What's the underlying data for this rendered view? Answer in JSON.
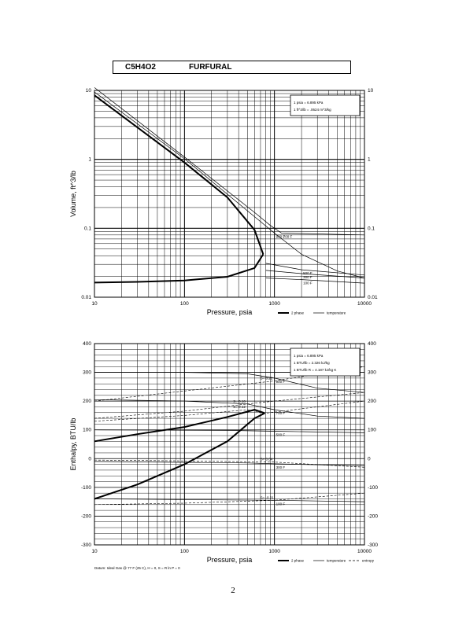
{
  "header": {
    "formula": "C5H4O2",
    "name": "FURFURAL"
  },
  "page_number": "2",
  "chart_data": [
    {
      "type": "line",
      "log_x": true,
      "log_y": true,
      "xlim": [
        10,
        10000
      ],
      "ylim": [
        0.01,
        10
      ],
      "xlabel": "Pressure,  psia",
      "ylabel": "Volume, ft^3/lb",
      "x_ticks": [
        "10",
        "100",
        "1000",
        "10000"
      ],
      "y_ticks": [
        "0.01",
        "0.1",
        "1",
        "10"
      ],
      "conversion_box": [
        "1 psia = 6.895 kPa",
        "1 ft^3/lb = .0624 m^3/kg"
      ],
      "legend_items": [
        "2 phase",
        "temperature"
      ],
      "dome": {
        "liquid": [
          [
            10,
            0.0163
          ],
          [
            30,
            0.0167
          ],
          [
            100,
            0.0175
          ],
          [
            300,
            0.0198
          ],
          [
            600,
            0.0265
          ],
          [
            750,
            0.042
          ]
        ],
        "vapor": [
          [
            10,
            8.5
          ],
          [
            30,
            2.9
          ],
          [
            100,
            0.9
          ],
          [
            300,
            0.28
          ],
          [
            600,
            0.095
          ],
          [
            750,
            0.042
          ]
        ]
      },
      "isotherms": [
        {
          "label": "900 F",
          "points": [
            [
              10,
              9.5
            ],
            [
              100,
              1.02
            ],
            [
              500,
              0.18
            ],
            [
              1000,
              0.085
            ],
            [
              2000,
              0.042
            ],
            [
              5000,
              0.024
            ],
            [
              10000,
              0.019
            ]
          ]
        },
        {
          "label": "700 F",
          "points": [
            [
              10,
              11
            ],
            [
              100,
              1.08
            ],
            [
              600,
              0.17
            ],
            [
              900,
              0.11
            ],
            [
              1200,
              0.085
            ],
            [
              10000,
              0.08
            ]
          ]
        },
        {
          "label": "500 F",
          "points": [
            [
              800,
              0.031
            ],
            [
              2000,
              0.025
            ],
            [
              10000,
              0.021
            ]
          ]
        },
        {
          "label": "300 F",
          "points": [
            [
              800,
              0.0245
            ],
            [
              2000,
              0.022
            ],
            [
              10000,
              0.019
            ]
          ]
        },
        {
          "label": "100 F",
          "points": [
            [
              800,
              0.019
            ],
            [
              2000,
              0.018
            ],
            [
              10000,
              0.016
            ]
          ]
        }
      ]
    },
    {
      "type": "line",
      "log_x": true,
      "xlim": [
        10,
        10000
      ],
      "ylim": [
        -300,
        400
      ],
      "xlabel": "Pressure,  psia",
      "ylabel": "Enthalpy, BTU/lb",
      "x_ticks": [
        "10",
        "100",
        "1000",
        "10000"
      ],
      "y_ticks": [
        "400",
        "300",
        "200",
        "100",
        "0",
        "-100",
        "-200",
        "-300"
      ],
      "conversion_box": [
        "1 psia = 6.895 kPa",
        "1 BTU/lb = 2.326 kJ/kg",
        "1 BTU/lb R = 4.187 kJ/kg K"
      ],
      "legend_items": [
        "2 phase",
        "temperature",
        "entropy"
      ],
      "footnote": "Datum: Ideal Gas @ 77 F (25 C),  H = 0,  S = R ln P = 0",
      "dome": {
        "liquid": [
          [
            10,
            -140
          ],
          [
            30,
            -90
          ],
          [
            100,
            -20
          ],
          [
            300,
            60
          ],
          [
            600,
            140
          ],
          [
            780,
            158
          ]
        ],
        "vapor": [
          [
            10,
            60
          ],
          [
            30,
            85
          ],
          [
            100,
            110
          ],
          [
            300,
            145
          ],
          [
            600,
            170
          ],
          [
            780,
            158
          ]
        ]
      },
      "isotherms": [
        {
          "label": "900 F",
          "points": [
            [
              10,
              300
            ],
            [
              100,
              300
            ],
            [
              500,
              295
            ],
            [
              1000,
              280
            ],
            [
              3000,
              245
            ],
            [
              10000,
              230
            ]
          ]
        },
        {
          "label": "700 F",
          "points": [
            [
              10,
              205
            ],
            [
              100,
              200
            ],
            [
              500,
              190
            ],
            [
              1000,
              170
            ],
            [
              3000,
              148
            ],
            [
              10000,
              140
            ]
          ]
        },
        {
          "label": "500 F",
          "points": [
            [
              10,
              100
            ],
            [
              300,
              98
            ],
            [
              1000,
              95
            ],
            [
              10000,
              90
            ]
          ]
        },
        {
          "label": "300 F",
          "points": [
            [
              10,
              -10
            ],
            [
              500,
              -15
            ],
            [
              1000,
              -18
            ],
            [
              10000,
              -25
            ]
          ]
        },
        {
          "label": "100 F",
          "points": [
            [
              10,
              -140
            ],
            [
              1000,
              -145
            ],
            [
              10000,
              -150
            ]
          ]
        }
      ],
      "entropy_lines": [
        {
          "label": "S= 0.22",
          "points": [
            [
              10,
              200
            ],
            [
              100,
              235
            ],
            [
              1000,
              270
            ],
            [
              10000,
              320
            ]
          ]
        },
        {
          "label": "S= 0.16",
          "points": [
            [
              10,
              140
            ],
            [
              100,
              165
            ],
            [
              500,
              190
            ],
            [
              1000,
              200
            ],
            [
              10000,
              230
            ]
          ]
        },
        {
          "label": "S= 0.12",
          "points": [
            [
              10,
              130
            ],
            [
              100,
              150
            ],
            [
              500,
              170
            ],
            [
              800,
              158
            ],
            [
              10000,
              200
            ]
          ]
        },
        {
          "label": "S= 0.04",
          "points": [
            [
              10,
              -5
            ],
            [
              100,
              -8
            ],
            [
              1000,
              -12
            ],
            [
              10000,
              -30
            ]
          ]
        },
        {
          "label": "S= -0.21",
          "points": [
            [
              10,
              -160
            ],
            [
              100,
              -155
            ],
            [
              1000,
              -145
            ],
            [
              10000,
              -120
            ]
          ]
        }
      ]
    }
  ]
}
